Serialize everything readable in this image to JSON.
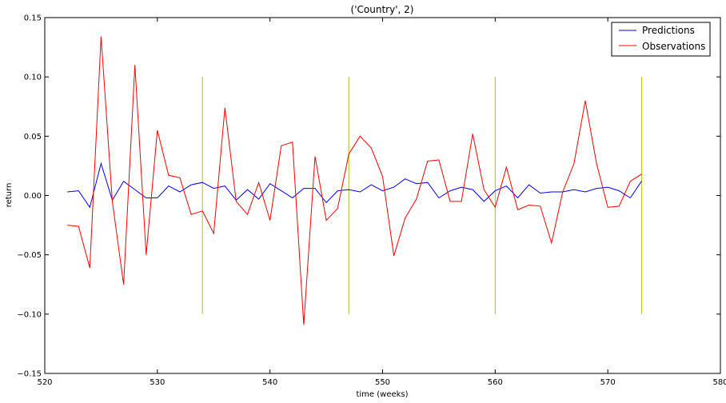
{
  "chart_data": {
    "type": "line",
    "title": "('Country', 2)",
    "xlabel": "time (weeks)",
    "ylabel": "return",
    "xlim": [
      520,
      580
    ],
    "ylim": [
      -0.15,
      0.15
    ],
    "xticks": [
      520,
      530,
      540,
      550,
      560,
      570,
      580
    ],
    "yticks": [
      -0.15,
      -0.1,
      -0.05,
      0.0,
      0.05,
      0.1,
      0.15
    ],
    "xtick_labels": [
      "520",
      "530",
      "540",
      "550",
      "560",
      "570",
      "580"
    ],
    "ytick_labels": [
      "−0.15",
      "−0.10",
      "−0.05",
      "0.00",
      "0.05",
      "0.10",
      "0.15"
    ],
    "grid": false,
    "legend_position": "top-right",
    "x": [
      522,
      523,
      524,
      525,
      526,
      527,
      528,
      529,
      530,
      531,
      532,
      533,
      534,
      535,
      536,
      537,
      538,
      539,
      540,
      541,
      542,
      543,
      544,
      545,
      546,
      547,
      548,
      549,
      550,
      551,
      552,
      553,
      554,
      555,
      556,
      557,
      558,
      559,
      560,
      561,
      562,
      563,
      564,
      565,
      566,
      567,
      568,
      569,
      570,
      571,
      572,
      573
    ],
    "series": [
      {
        "name": "Predictions",
        "color": "#0000ff",
        "values": [
          0.003,
          0.004,
          -0.01,
          0.027,
          -0.004,
          0.012,
          0.005,
          -0.002,
          -0.002,
          0.008,
          0.003,
          0.009,
          0.011,
          0.006,
          0.008,
          -0.004,
          0.005,
          -0.003,
          0.01,
          0.004,
          -0.002,
          0.006,
          0.006,
          -0.006,
          0.004,
          0.005,
          0.003,
          0.009,
          0.004,
          0.007,
          0.014,
          0.01,
          0.011,
          -0.002,
          0.004,
          0.007,
          0.005,
          -0.005,
          0.004,
          0.008,
          -0.002,
          0.009,
          0.002,
          0.003,
          0.003,
          0.005,
          0.003,
          0.006,
          0.007,
          0.004,
          -0.002,
          0.012
        ]
      },
      {
        "name": "Observations",
        "color": "#ff0000",
        "values": [
          -0.025,
          -0.026,
          -0.061,
          0.134,
          -0.005,
          -0.075,
          0.11,
          -0.05,
          0.055,
          0.017,
          0.015,
          -0.016,
          -0.013,
          -0.032,
          0.074,
          -0.005,
          -0.016,
          0.011,
          -0.021,
          0.042,
          0.045,
          -0.109,
          0.033,
          -0.021,
          -0.011,
          0.035,
          0.05,
          0.04,
          0.016,
          -0.051,
          -0.019,
          -0.003,
          0.029,
          0.03,
          -0.005,
          -0.005,
          0.052,
          0.005,
          -0.01,
          0.024,
          -0.012,
          -0.008,
          -0.009,
          -0.04,
          0.003,
          0.027,
          0.08,
          0.027,
          -0.01,
          -0.009,
          0.012,
          0.018
        ]
      }
    ],
    "vlines": {
      "color": "#bfbf00",
      "x": [
        534,
        547,
        560,
        573
      ],
      "y_range": [
        -0.1,
        0.1
      ]
    }
  }
}
